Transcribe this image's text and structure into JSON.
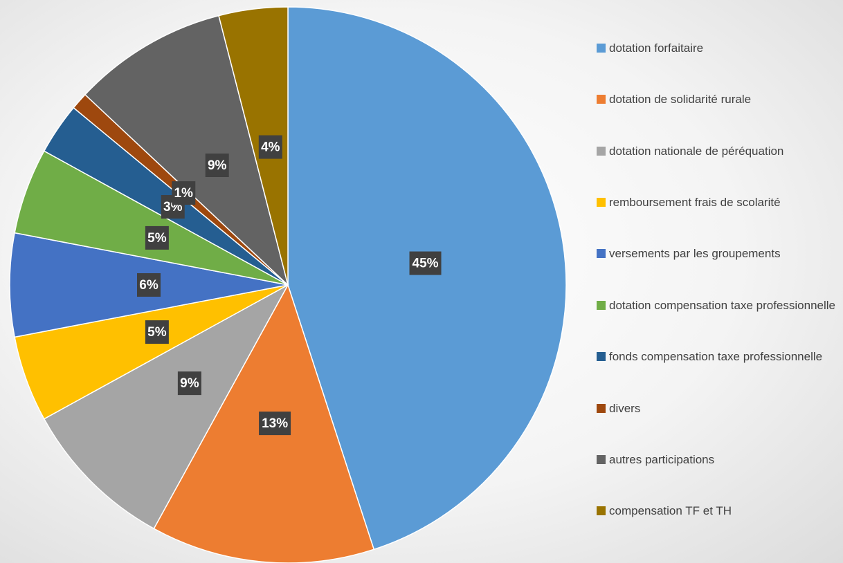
{
  "chart_data": {
    "type": "pie",
    "categories": [
      "dotation forfaitaire",
      "dotation de solidarité rurale",
      "dotation nationale de péréquation",
      "remboursement frais de scolarité",
      "versements par les groupements",
      "dotation compensation taxe professionnelle",
      "fonds compensation taxe professionnelle",
      "divers",
      "autres participations",
      "compensation TF et TH"
    ],
    "values": [
      45,
      13,
      9,
      5,
      6,
      5,
      3,
      1,
      9,
      4
    ],
    "value_labels": [
      "45%",
      "13%",
      "9%",
      "5%",
      "6%",
      "5%",
      "3%",
      "1%",
      "9%",
      "4%"
    ],
    "colors": [
      "#5b9bd5",
      "#ed7d31",
      "#a5a5a5",
      "#ffc000",
      "#4472c4",
      "#70ad47",
      "#255e91",
      "#9e480e",
      "#636363",
      "#997300"
    ],
    "legend": "right"
  }
}
